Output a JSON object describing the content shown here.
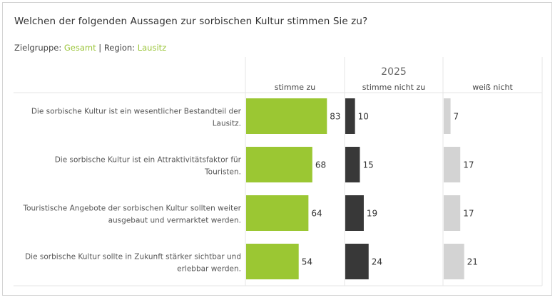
{
  "title": "Welchen der folgenden Aussagen zur sorbischen Kultur stimmen Sie zu?",
  "filters": {
    "group_label": "Zielgruppe:",
    "group_value": "Gesamt",
    "separator": "|",
    "region_label": "Region:",
    "region_value": "Lausitz"
  },
  "colors": {
    "accent": "#9bc53a",
    "agree": "#9bc733",
    "disagree": "#383838",
    "dontknow": "#d3d3d3",
    "grid": "#e6e6e6",
    "text": "#555555"
  },
  "chart_data": {
    "type": "bar",
    "orientation": "horizontal",
    "title": "Welchen der folgenden Aussagen zur sorbischen Kultur stimmen Sie zu?",
    "column_header": "2025",
    "categories": [
      "Die sorbische Kultur ist ein wesentlicher Bestandteil der Lausitz.",
      "Die sorbische Kultur ist ein Attraktivitätsfaktor für Touristen.",
      "Touristische Angebote der sorbischen Kultur sollten weiter ausgebaut und vermarktet werden.",
      "Die sorbische Kultur sollte in Zukunft stärker sichtbar und erlebbar werden."
    ],
    "category_lines": [
      [
        "Die sorbische Kultur ist ein wesentlicher Bestandteil der",
        "Lausitz."
      ],
      [
        "Die sorbische Kultur ist ein Attraktivitätsfaktor für",
        "Touristen."
      ],
      [
        "Touristische Angebote der sorbischen Kultur sollten weiter",
        "ausgebaut und vermarktet werden."
      ],
      [
        "Die sorbische Kultur sollte in Zukunft stärker sichtbar und",
        "erlebbar werden."
      ]
    ],
    "series": [
      {
        "name": "stimme zu",
        "values": [
          83,
          68,
          64,
          54
        ]
      },
      {
        "name": "stimme nicht zu",
        "values": [
          10,
          15,
          19,
          24
        ]
      },
      {
        "name": "weiß nicht",
        "values": [
          7,
          17,
          17,
          21
        ]
      }
    ],
    "unit": "%",
    "xlim": [
      0,
      100
    ],
    "grid": false,
    "legend": "column-headers"
  }
}
